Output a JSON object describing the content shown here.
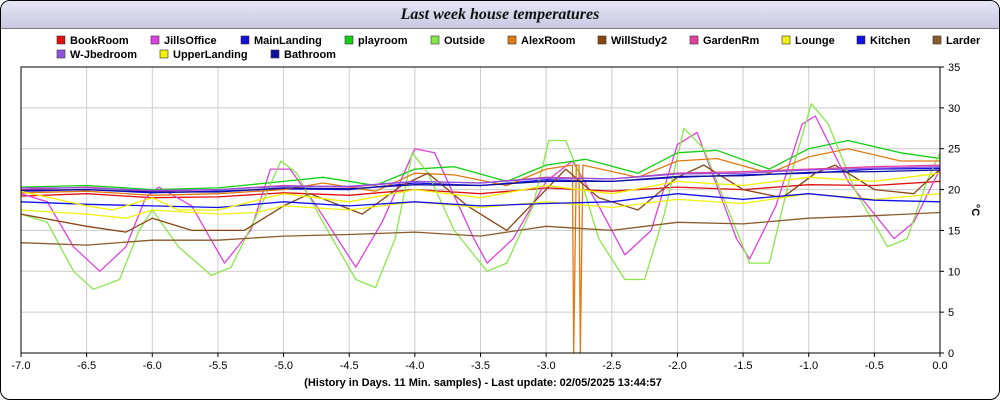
{
  "title": "Last week house temperatures",
  "chart_data": {
    "type": "line",
    "xlabel": "(History in Days. 11 Min. samples) - Last update: 02/05/2025 13:44:57",
    "ylabel": "°C",
    "xlim": [
      -7.0,
      0.0
    ],
    "ylim": [
      0,
      35
    ],
    "x_ticks": [
      "-7.0",
      "-6.5",
      "-6.0",
      "-5.5",
      "-5.0",
      "-4.5",
      "-4.0",
      "-3.5",
      "-3.0",
      "-2.5",
      "-2.0",
      "-1.5",
      "-1.0",
      "-0.5",
      "0.0"
    ],
    "y_ticks": [
      "0",
      "5",
      "10",
      "15",
      "20",
      "25",
      "30",
      "35"
    ],
    "grid": true,
    "y_axis_side": "right",
    "series": [
      {
        "name": "BookRoom",
        "color": "#e01010",
        "points": [
          [
            -7,
            19.2
          ],
          [
            -6.5,
            19.5
          ],
          [
            -6,
            19.0
          ],
          [
            -5.5,
            19.1
          ],
          [
            -5,
            19.6
          ],
          [
            -4.5,
            19.3
          ],
          [
            -4,
            20.0
          ],
          [
            -3.5,
            19.5
          ],
          [
            -3,
            20.2
          ],
          [
            -2.5,
            19.8
          ],
          [
            -2,
            20.3
          ],
          [
            -1.5,
            20.0
          ],
          [
            -1,
            20.6
          ],
          [
            -0.5,
            20.5
          ],
          [
            0,
            21.0
          ]
        ]
      },
      {
        "name": "JillsOffice",
        "color": "#e040e0",
        "points": [
          [
            -7,
            19.5
          ],
          [
            -6.8,
            18.5
          ],
          [
            -6.6,
            13.0
          ],
          [
            -6.4,
            10.0
          ],
          [
            -6.2,
            13.0
          ],
          [
            -6.05,
            19.0
          ],
          [
            -5.95,
            20.3
          ],
          [
            -5.7,
            18.0
          ],
          [
            -5.45,
            11.0
          ],
          [
            -5.25,
            15.0
          ],
          [
            -5.1,
            22.5
          ],
          [
            -4.95,
            22.5
          ],
          [
            -4.75,
            18.0
          ],
          [
            -4.45,
            10.5
          ],
          [
            -4.25,
            16.0
          ],
          [
            -4.0,
            25.0
          ],
          [
            -3.85,
            24.5
          ],
          [
            -3.55,
            14.0
          ],
          [
            -3.45,
            11.0
          ],
          [
            -3.25,
            14.0
          ],
          [
            -3.0,
            21.0
          ],
          [
            -2.8,
            23.5
          ],
          [
            -2.6,
            18.0
          ],
          [
            -2.4,
            12.0
          ],
          [
            -2.2,
            15.0
          ],
          [
            -2.0,
            25.5
          ],
          [
            -1.85,
            27.0
          ],
          [
            -1.55,
            14.0
          ],
          [
            -1.45,
            11.5
          ],
          [
            -1.25,
            18.0
          ],
          [
            -1.05,
            28.0
          ],
          [
            -0.95,
            29.0
          ],
          [
            -0.7,
            21.0
          ],
          [
            -0.35,
            14.0
          ],
          [
            -0.2,
            16.0
          ],
          [
            0,
            22.5
          ]
        ]
      },
      {
        "name": "MainLanding",
        "color": "#1010e0",
        "points": [
          [
            -7,
            19.8
          ],
          [
            -6.5,
            20.0
          ],
          [
            -6,
            19.6
          ],
          [
            -5.5,
            19.8
          ],
          [
            -5,
            20.1
          ],
          [
            -4.5,
            20.0
          ],
          [
            -4,
            20.8
          ],
          [
            -3.5,
            20.5
          ],
          [
            -3,
            21.2
          ],
          [
            -2.5,
            21.0
          ],
          [
            -2,
            21.5
          ],
          [
            -1.5,
            21.8
          ],
          [
            -1,
            22.0
          ],
          [
            -0.5,
            22.5
          ],
          [
            0,
            22.6
          ]
        ]
      },
      {
        "name": "playroom",
        "color": "#10d010",
        "points": [
          [
            -7,
            20.3
          ],
          [
            -6.5,
            20.5
          ],
          [
            -6,
            20.0
          ],
          [
            -5.5,
            20.2
          ],
          [
            -5,
            21.0
          ],
          [
            -4.7,
            21.5
          ],
          [
            -4.3,
            20.5
          ],
          [
            -4.0,
            22.5
          ],
          [
            -3.7,
            22.8
          ],
          [
            -3.3,
            21.0
          ],
          [
            -3.0,
            23.0
          ],
          [
            -2.7,
            23.7
          ],
          [
            -2.3,
            22.0
          ],
          [
            -2.0,
            24.5
          ],
          [
            -1.7,
            24.8
          ],
          [
            -1.3,
            22.5
          ],
          [
            -1.0,
            25.0
          ],
          [
            -0.7,
            26.0
          ],
          [
            -0.3,
            24.5
          ],
          [
            0,
            23.8
          ]
        ]
      },
      {
        "name": "Outside",
        "color": "#88e848",
        "points": [
          [
            -7,
            17.0
          ],
          [
            -6.8,
            16.0
          ],
          [
            -6.6,
            10.0
          ],
          [
            -6.45,
            7.8
          ],
          [
            -6.25,
            9.0
          ],
          [
            -6.1,
            15.0
          ],
          [
            -6.0,
            17.5
          ],
          [
            -5.8,
            13.0
          ],
          [
            -5.55,
            9.5
          ],
          [
            -5.4,
            10.5
          ],
          [
            -5.2,
            17.0
          ],
          [
            -5.02,
            23.5
          ],
          [
            -4.9,
            22.0
          ],
          [
            -4.7,
            16.0
          ],
          [
            -4.45,
            9.0
          ],
          [
            -4.3,
            8.0
          ],
          [
            -4.15,
            14.0
          ],
          [
            -4.02,
            24.5
          ],
          [
            -3.9,
            22.0
          ],
          [
            -3.7,
            15.0
          ],
          [
            -3.45,
            10.0
          ],
          [
            -3.3,
            11.0
          ],
          [
            -3.1,
            18.0
          ],
          [
            -2.98,
            26.0
          ],
          [
            -2.85,
            26.0
          ],
          [
            -2.75,
            22.0
          ],
          [
            -2.6,
            14.0
          ],
          [
            -2.4,
            9.0
          ],
          [
            -2.25,
            9.0
          ],
          [
            -2.1,
            17.0
          ],
          [
            -1.95,
            27.5
          ],
          [
            -1.8,
            25.0
          ],
          [
            -1.6,
            17.0
          ],
          [
            -1.45,
            11.0
          ],
          [
            -1.3,
            11.0
          ],
          [
            -1.15,
            21.0
          ],
          [
            -0.98,
            30.5
          ],
          [
            -0.85,
            28.0
          ],
          [
            -0.65,
            20.0
          ],
          [
            -0.4,
            13.0
          ],
          [
            -0.25,
            14.0
          ],
          [
            -0.1,
            21.0
          ],
          [
            0,
            24.5
          ]
        ]
      },
      {
        "name": "AlexRoom",
        "color": "#e07a10",
        "points": [
          [
            -7,
            19.6
          ],
          [
            -6.5,
            19.8
          ],
          [
            -6,
            19.3
          ],
          [
            -5.5,
            19.5
          ],
          [
            -5,
            20.0
          ],
          [
            -4.7,
            20.8
          ],
          [
            -4.3,
            19.8
          ],
          [
            -4.0,
            22.0
          ],
          [
            -3.7,
            21.8
          ],
          [
            -3.3,
            20.5
          ],
          [
            -3.0,
            22.5
          ],
          [
            -2.8,
            23.0
          ],
          [
            -2.79,
            0
          ],
          [
            -2.77,
            23.0
          ],
          [
            -2.75,
            23.0
          ],
          [
            -2.74,
            0
          ],
          [
            -2.72,
            23.0
          ],
          [
            -2.3,
            21.5
          ],
          [
            -2.0,
            23.5
          ],
          [
            -1.7,
            23.8
          ],
          [
            -1.3,
            22.0
          ],
          [
            -1.0,
            24.0
          ],
          [
            -0.7,
            25.0
          ],
          [
            -0.3,
            23.5
          ],
          [
            0,
            23.5
          ]
        ]
      },
      {
        "name": "WillStudy2",
        "color": "#8b4513",
        "points": [
          [
            -7,
            17.0
          ],
          [
            -6.5,
            15.5
          ],
          [
            -6.2,
            14.8
          ],
          [
            -6.0,
            16.5
          ],
          [
            -5.7,
            15.0
          ],
          [
            -5.3,
            15.0
          ],
          [
            -5.0,
            18.0
          ],
          [
            -4.8,
            19.5
          ],
          [
            -4.4,
            17.0
          ],
          [
            -4.1,
            20.5
          ],
          [
            -3.9,
            22.0
          ],
          [
            -3.6,
            18.0
          ],
          [
            -3.3,
            15.0
          ],
          [
            -3.0,
            20.0
          ],
          [
            -2.85,
            22.5
          ],
          [
            -2.6,
            19.0
          ],
          [
            -2.3,
            17.5
          ],
          [
            -2.0,
            21.5
          ],
          [
            -1.8,
            23.0
          ],
          [
            -1.5,
            20.0
          ],
          [
            -1.2,
            19.0
          ],
          [
            -0.95,
            22.0
          ],
          [
            -0.8,
            23.0
          ],
          [
            -0.5,
            20.0
          ],
          [
            -0.2,
            19.5
          ],
          [
            0,
            22.5
          ]
        ]
      },
      {
        "name": "GardenRm",
        "color": "#e040a0",
        "points": [
          [
            -7,
            20.0
          ],
          [
            -6.5,
            20.3
          ],
          [
            -6,
            19.8
          ],
          [
            -5.5,
            20.0
          ],
          [
            -5,
            20.5
          ],
          [
            -4.5,
            20.3
          ],
          [
            -4,
            21.0
          ],
          [
            -3.5,
            20.8
          ],
          [
            -3,
            21.5
          ],
          [
            -2.5,
            21.3
          ],
          [
            -2,
            22.0
          ],
          [
            -1.5,
            22.2
          ],
          [
            -1,
            22.5
          ],
          [
            -0.5,
            22.8
          ],
          [
            0,
            23.0
          ]
        ]
      },
      {
        "name": "Lounge",
        "color": "#f0f010",
        "points": [
          [
            -7,
            17.5
          ],
          [
            -6.5,
            17.0
          ],
          [
            -6.2,
            16.5
          ],
          [
            -6.0,
            17.5
          ],
          [
            -5.5,
            17.0
          ],
          [
            -5.2,
            17.2
          ],
          [
            -5.0,
            18.0
          ],
          [
            -4.5,
            17.5
          ],
          [
            -4.0,
            18.5
          ],
          [
            -3.5,
            17.8
          ],
          [
            -3.0,
            18.5
          ],
          [
            -2.5,
            17.8
          ],
          [
            -2.0,
            18.8
          ],
          [
            -1.5,
            18.3
          ],
          [
            -1.0,
            19.5
          ],
          [
            -0.5,
            18.8
          ],
          [
            0,
            19.5
          ]
        ]
      },
      {
        "name": "Kitchen",
        "color": "#1010e8",
        "points": [
          [
            -7,
            18.5
          ],
          [
            -6.5,
            18.2
          ],
          [
            -6,
            18.0
          ],
          [
            -5.5,
            17.8
          ],
          [
            -5,
            18.5
          ],
          [
            -4.5,
            18.0
          ],
          [
            -4,
            18.5
          ],
          [
            -3.5,
            18.0
          ],
          [
            -3,
            18.3
          ],
          [
            -2.5,
            18.5
          ],
          [
            -2,
            19.5
          ],
          [
            -1.5,
            18.8
          ],
          [
            -1,
            19.5
          ],
          [
            -0.5,
            18.7
          ],
          [
            0,
            18.5
          ]
        ]
      },
      {
        "name": "Larder",
        "color": "#8b5a2b",
        "points": [
          [
            -7,
            13.5
          ],
          [
            -6.5,
            13.2
          ],
          [
            -6,
            13.8
          ],
          [
            -5.5,
            13.8
          ],
          [
            -5,
            14.3
          ],
          [
            -4.5,
            14.5
          ],
          [
            -4,
            14.8
          ],
          [
            -3.5,
            14.3
          ],
          [
            -3,
            15.5
          ],
          [
            -2.5,
            15.0
          ],
          [
            -2,
            16.0
          ],
          [
            -1.5,
            15.8
          ],
          [
            -1,
            16.5
          ],
          [
            -0.5,
            16.8
          ],
          [
            0,
            17.2
          ]
        ]
      },
      {
        "name": "W-Jbedroom",
        "color": "#9050e0",
        "points": [
          [
            -7,
            20.2
          ],
          [
            -6.5,
            20.2
          ],
          [
            -6,
            19.9
          ],
          [
            -5.5,
            20.0
          ],
          [
            -5,
            20.4
          ],
          [
            -4.5,
            20.4
          ],
          [
            -4,
            21.0
          ],
          [
            -3.5,
            20.8
          ],
          [
            -3,
            21.4
          ],
          [
            -2.5,
            21.3
          ],
          [
            -2,
            21.9
          ],
          [
            -1.5,
            22.0
          ],
          [
            -1,
            22.4
          ],
          [
            -0.5,
            22.6
          ],
          [
            0,
            22.8
          ]
        ]
      },
      {
        "name": "UpperLanding",
        "color": "#f0f000",
        "points": [
          [
            -7,
            19.8
          ],
          [
            -6.5,
            18.0
          ],
          [
            -6.3,
            17.5
          ],
          [
            -6.0,
            19.0
          ],
          [
            -5.8,
            17.5
          ],
          [
            -5.5,
            17.5
          ],
          [
            -5.0,
            19.5
          ],
          [
            -4.5,
            18.5
          ],
          [
            -4.0,
            20.0
          ],
          [
            -3.5,
            19.0
          ],
          [
            -3.0,
            20.5
          ],
          [
            -2.5,
            19.5
          ],
          [
            -2.0,
            21.0
          ],
          [
            -1.5,
            20.5
          ],
          [
            -1.0,
            21.5
          ],
          [
            -0.5,
            21.0
          ],
          [
            0,
            22.0
          ]
        ]
      },
      {
        "name": "Bathroom",
        "color": "#1010a0",
        "points": [
          [
            -7,
            19.9
          ],
          [
            -6.5,
            20.0
          ],
          [
            -6,
            19.7
          ],
          [
            -5.5,
            19.7
          ],
          [
            -5,
            20.2
          ],
          [
            -4.5,
            20.1
          ],
          [
            -4,
            20.6
          ],
          [
            -3.5,
            20.5
          ],
          [
            -3,
            21.0
          ],
          [
            -2.5,
            21.0
          ],
          [
            -2,
            21.6
          ],
          [
            -1.5,
            21.7
          ],
          [
            -1,
            22.1
          ],
          [
            -0.5,
            22.2
          ],
          [
            0,
            22.4
          ]
        ]
      }
    ]
  }
}
